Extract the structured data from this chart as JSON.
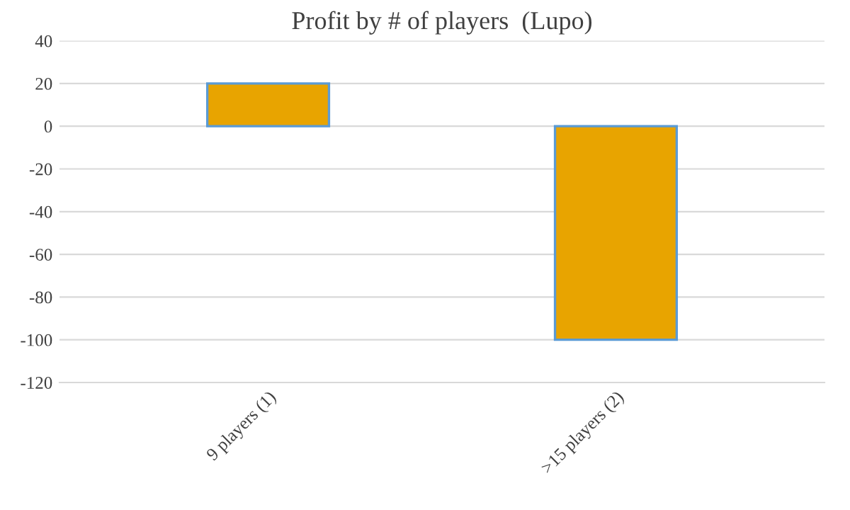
{
  "chart_data": {
    "type": "bar",
    "title": "Profit by # of players  (Lupo)",
    "categories": [
      "9 players (1)",
      ">15 players (2)"
    ],
    "series": [
      {
        "color": "#e8a400",
        "values": [
          20,
          -100
        ]
      }
    ],
    "ylim": [
      -120,
      40
    ],
    "yticks": [
      -120,
      -100,
      -80,
      -60,
      -40,
      -20,
      0,
      20,
      40
    ],
    "grid": "y"
  }
}
